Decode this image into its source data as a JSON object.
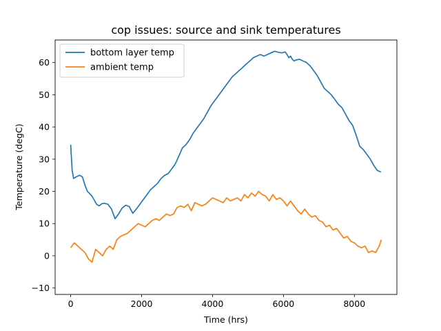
{
  "chart_data": {
    "type": "line",
    "title": "cop issues: source and sink temperatures",
    "xlabel": "Time (hrs)",
    "ylabel": "Temperature (degC)",
    "xlim": [
      -440,
      9200
    ],
    "ylim": [
      -12,
      67
    ],
    "xticks": [
      0,
      2000,
      4000,
      6000,
      8000
    ],
    "yticks": [
      -10,
      0,
      10,
      20,
      30,
      40,
      50,
      60
    ],
    "grid": false,
    "legend_position": "upper-left",
    "series": [
      {
        "name": "bottom layer temp",
        "color": "#1f77b4",
        "x": [
          0,
          40,
          80,
          150,
          250,
          330,
          400,
          470,
          520,
          600,
          680,
          730,
          800,
          880,
          950,
          1050,
          1150,
          1250,
          1350,
          1450,
          1550,
          1650,
          1750,
          1850,
          1950,
          2050,
          2150,
          2250,
          2350,
          2450,
          2550,
          2650,
          2750,
          2850,
          2950,
          3050,
          3150,
          3250,
          3350,
          3450,
          3550,
          3650,
          3750,
          3850,
          3950,
          4050,
          4150,
          4250,
          4350,
          4450,
          4550,
          4650,
          4750,
          4850,
          4950,
          5050,
          5150,
          5250,
          5350,
          5450,
          5550,
          5650,
          5750,
          5850,
          5950,
          6050,
          6100,
          6150,
          6200,
          6250,
          6300,
          6350,
          6450,
          6550,
          6650,
          6750,
          6850,
          6950,
          7050,
          7150,
          7250,
          7350,
          7450,
          7550,
          7650,
          7750,
          7850,
          7950,
          8050,
          8150,
          8250,
          8350,
          8450,
          8550,
          8650,
          8750
        ],
        "y": [
          34.5,
          26.5,
          24.0,
          24.5,
          25.0,
          24.5,
          22.0,
          20.0,
          19.5,
          18.5,
          17.0,
          16.0,
          15.5,
          16.2,
          16.3,
          16.0,
          14.5,
          11.5,
          13.0,
          14.8,
          15.7,
          15.3,
          13.2,
          14.5,
          16.0,
          17.5,
          19.0,
          20.5,
          21.5,
          22.5,
          24.0,
          25.0,
          25.5,
          27.0,
          28.5,
          31.0,
          33.5,
          34.5,
          36.0,
          38.0,
          39.5,
          41.0,
          42.5,
          44.5,
          46.5,
          48.0,
          49.5,
          51.0,
          52.5,
          54.0,
          55.5,
          56.5,
          57.5,
          58.5,
          59.5,
          60.5,
          61.5,
          62.0,
          62.5,
          62.0,
          62.5,
          63.0,
          63.5,
          63.2,
          63.0,
          63.3,
          62.5,
          61.5,
          62.0,
          61.0,
          60.5,
          60.8,
          61.0,
          60.5,
          60.0,
          59.0,
          57.5,
          56.0,
          54.0,
          52.0,
          51.0,
          50.0,
          48.5,
          47.0,
          46.0,
          44.0,
          42.0,
          40.5,
          37.5,
          34.0,
          33.0,
          31.5,
          30.0,
          28.0,
          26.5,
          26.0
        ]
      },
      {
        "name": "ambient temp",
        "color": "#ff7f0e",
        "x": [
          0,
          100,
          200,
          300,
          400,
          500,
          600,
          700,
          800,
          900,
          1000,
          1100,
          1200,
          1300,
          1400,
          1500,
          1600,
          1700,
          1800,
          1900,
          2000,
          2100,
          2200,
          2300,
          2400,
          2500,
          2600,
          2700,
          2800,
          2900,
          3000,
          3100,
          3200,
          3300,
          3400,
          3500,
          3600,
          3700,
          3800,
          3900,
          4000,
          4100,
          4200,
          4300,
          4400,
          4500,
          4600,
          4700,
          4800,
          4900,
          5000,
          5100,
          5200,
          5300,
          5400,
          5500,
          5600,
          5700,
          5800,
          5900,
          6000,
          6100,
          6200,
          6300,
          6400,
          6500,
          6600,
          6700,
          6800,
          6900,
          7000,
          7100,
          7200,
          7300,
          7400,
          7500,
          7600,
          7700,
          7800,
          7900,
          8000,
          8100,
          8200,
          8300,
          8400,
          8500,
          8600,
          8700,
          8760
        ],
        "y": [
          2.5,
          4.0,
          3.0,
          2.0,
          1.0,
          -1.0,
          -2.0,
          2.0,
          1.0,
          0.0,
          2.0,
          3.0,
          2.0,
          5.0,
          6.0,
          6.5,
          7.0,
          8.0,
          9.0,
          10.0,
          9.5,
          9.0,
          10.0,
          11.0,
          11.5,
          11.0,
          12.0,
          13.0,
          12.5,
          13.0,
          15.0,
          15.5,
          15.0,
          16.0,
          14.0,
          16.5,
          16.0,
          15.5,
          16.0,
          17.0,
          18.0,
          17.5,
          17.0,
          16.5,
          18.0,
          17.0,
          17.5,
          18.0,
          17.0,
          19.0,
          18.0,
          19.5,
          18.5,
          20.0,
          19.0,
          18.5,
          17.0,
          19.0,
          17.5,
          18.0,
          17.0,
          15.5,
          17.0,
          15.5,
          14.0,
          13.0,
          14.5,
          13.0,
          12.0,
          12.5,
          11.0,
          10.5,
          9.0,
          9.5,
          8.0,
          8.5,
          7.0,
          5.5,
          6.0,
          4.5,
          4.0,
          3.0,
          2.5,
          3.0,
          1.0,
          1.5,
          1.0,
          3.0,
          5.0
        ]
      }
    ]
  }
}
